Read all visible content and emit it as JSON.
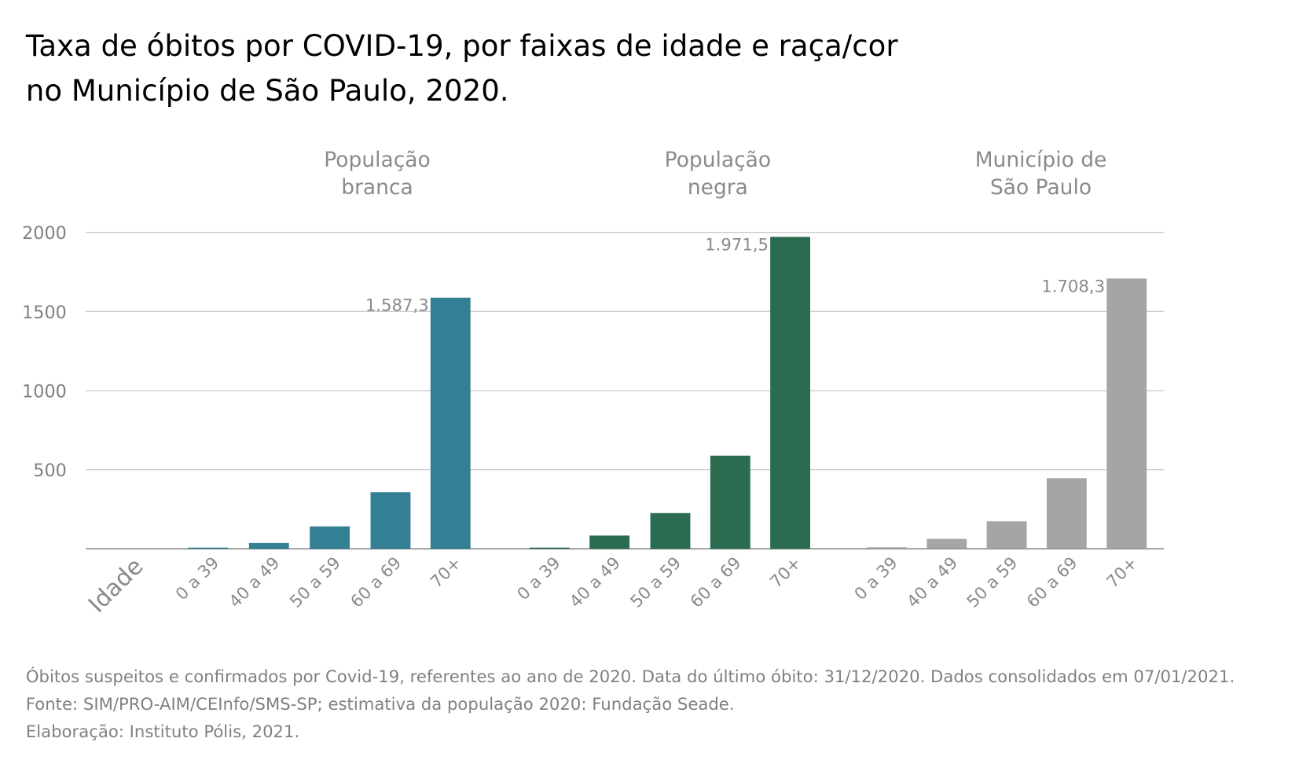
{
  "title_lines": [
    "Taxa de óbitos por COVID-19, por faixas de idade e raça/cor",
    "no Município de São Paulo, 2020."
  ],
  "footnotes": [
    "Óbitos suspeitos e confirmados por Covid-19, referentes ao ano de 2020. Data do último óbito: 31/12/2020. Dados consolidados em 07/01/2021.",
    "Fonte: SIM/PRO-AIM/CEInfo/SMS-SP; estimativa da população 2020: Fundação Seade.",
    "Elaboração: Instituto Pólis, 2021."
  ],
  "chart_data": {
    "type": "bar",
    "title": "Taxa de óbitos por COVID-19, por faixas de idade e raça/cor no Município de São Paulo, 2020.",
    "xlabel": "Idade",
    "ylabel": "",
    "ylim": [
      0,
      2000
    ],
    "yticks": [
      "500",
      "1000",
      "1500",
      "2000"
    ],
    "ytick_values": [
      500,
      1000,
      1500,
      2000
    ],
    "grid": true,
    "categories": [
      "0 a 39",
      "40 a 49",
      "50 a 59",
      "60 a 69",
      "70+"
    ],
    "groups": [
      {
        "name_lines": [
          "População",
          "branca"
        ],
        "color": "#337f93",
        "values": [
          3,
          37,
          142,
          358,
          1587.3
        ],
        "label": "1.587,3"
      },
      {
        "name_lines": [
          "População",
          "negra"
        ],
        "color": "#2b6b4f",
        "values": [
          4,
          84,
          226,
          589,
          1971.5
        ],
        "label": "1.971,5"
      },
      {
        "name_lines": [
          "Município de",
          "São Paulo"
        ],
        "color": "#a6a5a5",
        "values": [
          10,
          63,
          174,
          447,
          1708.3
        ],
        "label": "1.708,3"
      }
    ]
  }
}
